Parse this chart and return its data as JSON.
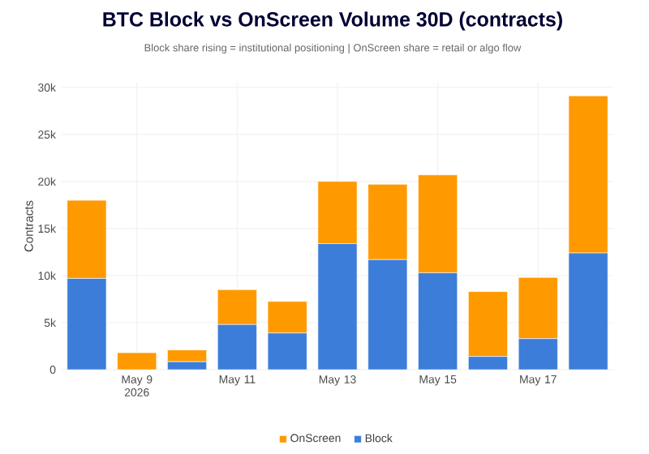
{
  "chart_data": {
    "type": "bar",
    "stacked": true,
    "title": "BTC Block vs OnScreen Volume 30D (contracts)",
    "subtitle": "Block share rising = institutional positioning | OnScreen share = retail or algo flow",
    "ylabel": "Contracts",
    "x": [
      "2026-05-08",
      "2026-05-09",
      "2026-05-10",
      "2026-05-11",
      "2026-05-12",
      "2026-05-13",
      "2026-05-14",
      "2026-05-15",
      "2026-05-16",
      "2026-05-17",
      "2026-05-18"
    ],
    "series": [
      {
        "name": "Block",
        "color": "#3c7dd9",
        "values": [
          9700,
          0,
          850,
          4800,
          3900,
          13400,
          11700,
          10300,
          1400,
          3300,
          12400
        ]
      },
      {
        "name": "OnScreen",
        "color": "#ff9900",
        "values": [
          8300,
          1800,
          1250,
          3700,
          3350,
          6600,
          8000,
          10400,
          6900,
          6500,
          16700
        ]
      }
    ],
    "xlim": [
      "2026-05-07T12:00",
      "2026-05-18T12:00"
    ],
    "xticks": [
      {
        "value": "2026-05-09",
        "label": "May 9 2026"
      },
      {
        "value": "2026-05-11",
        "label": "May 11"
      },
      {
        "value": "2026-05-13",
        "label": "May 13"
      },
      {
        "value": "2026-05-15",
        "label": "May 15"
      },
      {
        "value": "2026-05-17",
        "label": "May 17"
      }
    ],
    "ylim": [
      0,
      30500
    ],
    "yticks": [
      0,
      {
        "value": 5000,
        "label": "5k"
      },
      {
        "value": 10000,
        "label": "10k"
      },
      {
        "value": 15000,
        "label": "15k"
      },
      {
        "value": 20000,
        "label": "20k"
      },
      {
        "value": 25000,
        "label": "25k"
      },
      {
        "value": 30000,
        "label": "30k"
      }
    ],
    "grid": true,
    "legend": "bottom"
  }
}
